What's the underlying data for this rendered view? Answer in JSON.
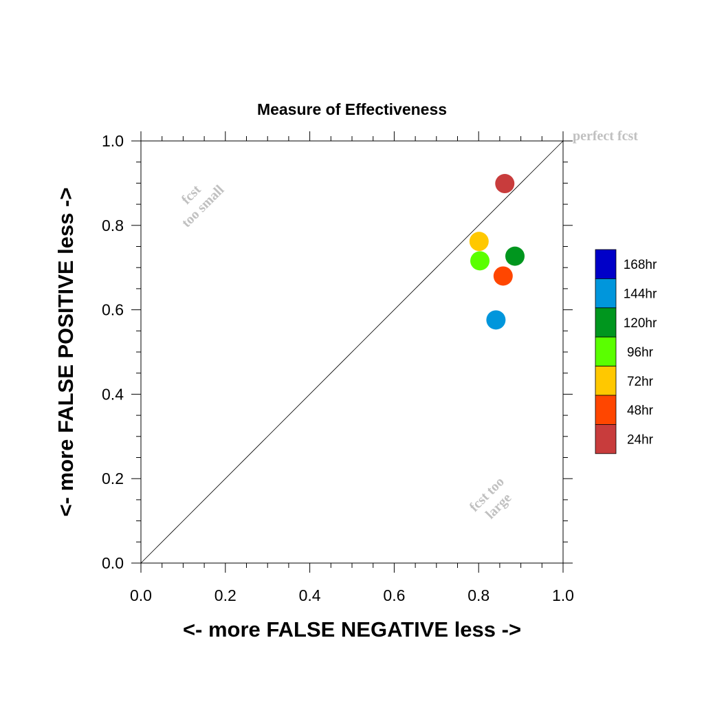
{
  "chart_data": {
    "type": "scatter",
    "title": "Measure of Effectiveness",
    "xlabel": "<- more   FALSE NEGATIVE   less ->",
    "ylabel": "<- more   FALSE POSITIVE   less ->",
    "xlim": [
      0.0,
      1.0
    ],
    "ylim": [
      0.0,
      1.0
    ],
    "x_ticks": [
      "0.0",
      "0.2",
      "0.4",
      "0.6",
      "0.8",
      "1.0"
    ],
    "y_ticks": [
      "0.0",
      "0.2",
      "0.4",
      "0.6",
      "0.8",
      "1.0"
    ],
    "grid": false,
    "reference_line": "diagonal y = x",
    "annotations": {
      "perfect": "perfect fcst",
      "small_line1": "fcst",
      "small_line2": "too small",
      "large_line1": "fcst too",
      "large_line2": "large"
    },
    "legend_position": "right",
    "series": [
      {
        "name": "168hr",
        "color": "#0000c8",
        "points": []
      },
      {
        "name": "144hr",
        "color": "#0096dc",
        "points": [
          [
            0.841,
            0.576
          ]
        ]
      },
      {
        "name": "120hr",
        "color": "#00961e",
        "points": [
          [
            0.886,
            0.727
          ]
        ]
      },
      {
        "name": "96hr",
        "color": "#5aff00",
        "points": [
          [
            0.803,
            0.716
          ]
        ]
      },
      {
        "name": "72hr",
        "color": "#ffc800",
        "points": [
          [
            0.801,
            0.762
          ]
        ]
      },
      {
        "name": "48hr",
        "color": "#ff4600",
        "points": [
          [
            0.858,
            0.68
          ]
        ]
      },
      {
        "name": "24hr",
        "color": "#c83c3c",
        "points": [
          [
            0.862,
            0.899
          ]
        ]
      }
    ]
  }
}
